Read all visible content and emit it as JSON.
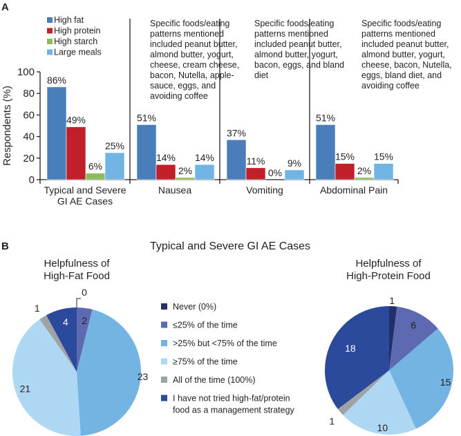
{
  "panel_a_letter": "A",
  "panel_b_letter": "B",
  "colors": {
    "high_fat": "#4a7ebb",
    "high_protein": "#c1202a",
    "high_starch": "#8cbc5c",
    "large_meals": "#70b4e3",
    "never": "#232f6b",
    "le25": "#5d69b1",
    "gt25_lt75": "#73b4e2",
    "ge75": "#aed7f4",
    "all": "#a0a3a6",
    "not_tried": "#2c4a9c"
  },
  "chart_data": [
    {
      "type": "bar",
      "title": "",
      "xlabel": "",
      "ylabel": "Respondents (%)",
      "ylim": [
        0,
        100
      ],
      "yticks": [
        0,
        20,
        40,
        60,
        80,
        100
      ],
      "grid": false,
      "legend_placement": "top-left",
      "categories": [
        "Typical and Severe GI AE Cases",
        "Nausea",
        "Vomiting",
        "Abdominal Pain"
      ],
      "category_lines": [
        [
          "Typical and Severe",
          "GI AE Cases"
        ],
        [
          "Nausea"
        ],
        [
          "Vomiting"
        ],
        [
          "Abdominal Pain"
        ]
      ],
      "series": [
        {
          "name": "High fat",
          "color_key": "high_fat",
          "values": [
            86,
            51,
            37,
            51
          ]
        },
        {
          "name": "High protein",
          "color_key": "high_protein",
          "values": [
            49,
            14,
            11,
            15
          ]
        },
        {
          "name": "High starch",
          "color_key": "high_starch",
          "values": [
            6,
            2,
            0,
            2
          ]
        },
        {
          "name": "Large meals",
          "color_key": "large_meals",
          "values": [
            25,
            14,
            9,
            15
          ]
        }
      ],
      "value_suffix": "%",
      "annotations": [
        {
          "category": "Nausea",
          "lines": [
            "Specific foods/eating",
            "patterns mentioned",
            "included peanut butter,",
            "almond butter, yogurt,",
            "cheese, cream cheese,",
            "bacon, Nutella, apple-",
            "sauce, eggs, and",
            "avoiding coffee"
          ]
        },
        {
          "category": "Vomiting",
          "lines": [
            "Specific foods/eating",
            "patterns mentioned",
            "included peanut butter,",
            "almond butter, yogurt,",
            "bacon, eggs, and bland",
            "diet"
          ]
        },
        {
          "category": "Abdominal Pain",
          "lines": [
            "Specific foods/eating",
            "patterns mentioned",
            "included peanut butter,",
            "almond butter, yogurt,",
            "cheese, bacon, Nutella,",
            "eggs, bland diet, and",
            "avoiding coffee"
          ]
        }
      ]
    },
    {
      "type": "pie",
      "title": "Typical and Severe GI AE Cases",
      "subtitle_lines": [
        "Helpfulness of",
        "High-Fat Food"
      ],
      "categories": [
        "Never (0%)",
        "≤25% of the time",
        ">25% but <75% of the time",
        "≥75% of the time",
        "All of the time (100%)",
        "I have not tried high-fat/protein food as a management strategy"
      ],
      "values": [
        0,
        2,
        23,
        21,
        1,
        4
      ]
    },
    {
      "type": "pie",
      "title": "Typical and Severe GI AE Cases",
      "subtitle_lines": [
        "Helpfulness of",
        "High-Protein Food"
      ],
      "categories": [
        "Never (0%)",
        "≤25% of the time",
        ">25% but <75% of the time",
        "≥75% of the time",
        "All of the time (100%)",
        "I have not tried high-fat/protein food as a management strategy"
      ],
      "values": [
        1,
        6,
        15,
        10,
        1,
        18
      ]
    }
  ],
  "pie_legend": {
    "items": [
      {
        "lines": [
          "Never (0%)"
        ],
        "color_key": "never"
      },
      {
        "lines": [
          "≤25% of the time"
        ],
        "color_key": "le25"
      },
      {
        "lines": [
          ">25% but <75% of the time"
        ],
        "color_key": "gt25_lt75"
      },
      {
        "lines": [
          "≥75% of the time"
        ],
        "color_key": "ge75"
      },
      {
        "lines": [
          "All of the time (100%)"
        ],
        "color_key": "all"
      },
      {
        "lines": [
          "I have not tried high-fat/protein",
          "food as a management strategy"
        ],
        "color_key": "not_tried"
      }
    ]
  }
}
